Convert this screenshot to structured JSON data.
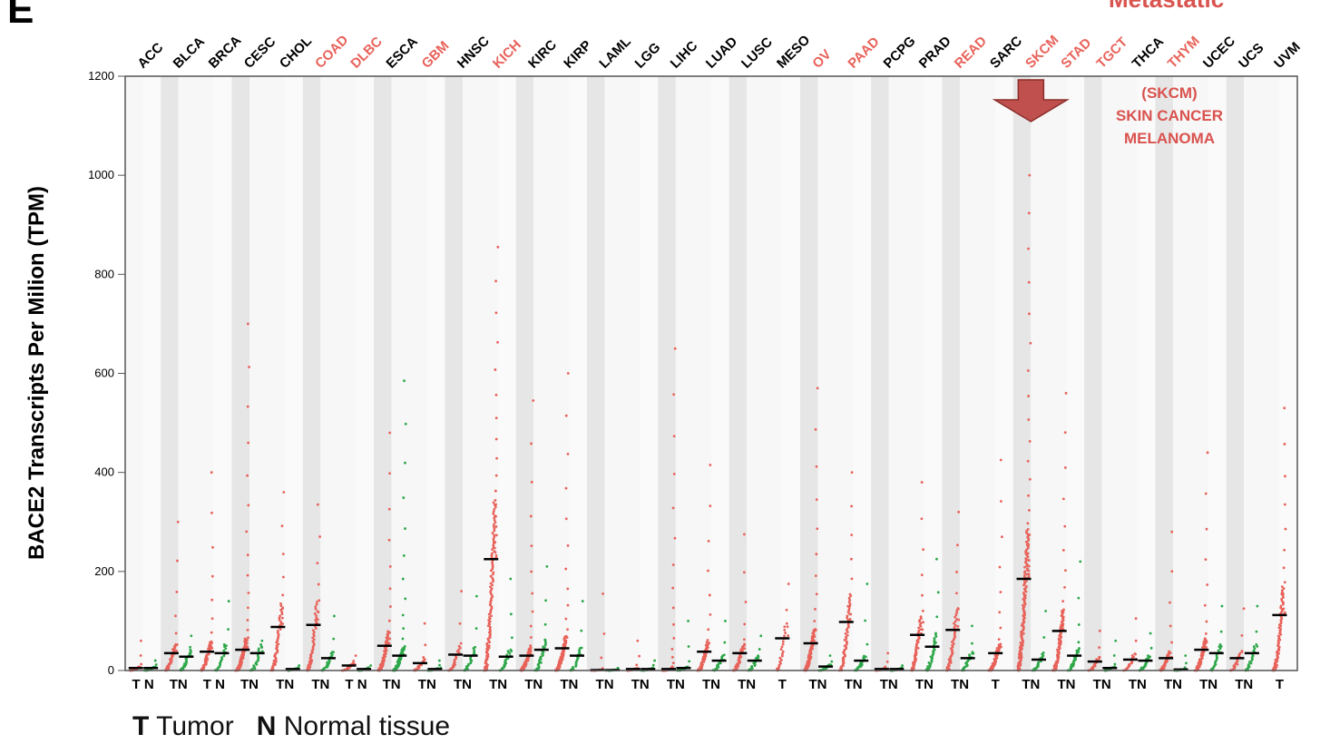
{
  "panel_letter": "E",
  "corner_text": "Metastatic",
  "legend": {
    "tumor_key": "T",
    "tumor_label": "Tumor",
    "normal_key": "N",
    "normal_label": "Normal tissue"
  },
  "annotation": [
    "(SKCM)",
    "SKIN CANCER",
    "MELANOMA"
  ],
  "colors": {
    "tumor": "#e8625a",
    "normal": "#2ea84a",
    "highlight_label": "#e8625a",
    "label": "#000000",
    "band_dark": "#e6e6e6",
    "band_light": "#f7f7f7",
    "arrow": "#c0504d",
    "annotation": "#d9534f"
  },
  "chart_data": {
    "type": "scatter",
    "title": "",
    "ylabel": "BACE2 Transcripts Per Milion (TPM)",
    "xlabel": "",
    "ylim": [
      0,
      1200
    ],
    "yticks": [
      0,
      200,
      400,
      600,
      800,
      1000,
      1200
    ],
    "grid": false,
    "legend_placement": "bottom-left",
    "groups": [
      {
        "name": "ACC",
        "highlight": false,
        "tumor_median": 5,
        "tumor_max": 60,
        "normal_median": 5,
        "normal_max": 20,
        "labels": "T N"
      },
      {
        "name": "BLCA",
        "highlight": false,
        "tumor_median": 35,
        "tumor_max": 300,
        "normal_median": 28,
        "normal_max": 70,
        "labels": "TN"
      },
      {
        "name": "BRCA",
        "highlight": false,
        "tumor_median": 38,
        "tumor_max": 400,
        "normal_median": 35,
        "normal_max": 140,
        "labels": "T N"
      },
      {
        "name": "CESC",
        "highlight": false,
        "tumor_median": 42,
        "tumor_max": 700,
        "normal_median": 35,
        "normal_max": 60,
        "labels": "TN"
      },
      {
        "name": "CHOL",
        "highlight": false,
        "tumor_median": 88,
        "tumor_max": 360,
        "normal_median": 3,
        "normal_max": 10,
        "labels": "TN"
      },
      {
        "name": "COAD",
        "highlight": true,
        "tumor_median": 92,
        "tumor_max": 335,
        "normal_median": 25,
        "normal_max": 110,
        "labels": "TN"
      },
      {
        "name": "DLBC",
        "highlight": true,
        "tumor_median": 10,
        "tumor_max": 30,
        "normal_median": 3,
        "normal_max": 10,
        "labels": "T N"
      },
      {
        "name": "ESCA",
        "highlight": false,
        "tumor_median": 50,
        "tumor_max": 480,
        "normal_median": 30,
        "normal_max": 585,
        "labels": "TN"
      },
      {
        "name": "GBM",
        "highlight": true,
        "tumor_median": 15,
        "tumor_max": 95,
        "normal_median": 3,
        "normal_max": 20,
        "labels": "TN"
      },
      {
        "name": "HNSC",
        "highlight": false,
        "tumor_median": 32,
        "tumor_max": 160,
        "normal_median": 30,
        "normal_max": 150,
        "labels": "TN"
      },
      {
        "name": "KICH",
        "highlight": true,
        "tumor_median": 225,
        "tumor_max": 855,
        "normal_median": 28,
        "normal_max": 185,
        "labels": "TN"
      },
      {
        "name": "KIRC",
        "highlight": false,
        "tumor_median": 30,
        "tumor_max": 545,
        "normal_median": 42,
        "normal_max": 210,
        "labels": "TN"
      },
      {
        "name": "KIRP",
        "highlight": false,
        "tumor_median": 45,
        "tumor_max": 600,
        "normal_median": 30,
        "normal_max": 140,
        "labels": "TN"
      },
      {
        "name": "LAML",
        "highlight": false,
        "tumor_median": 1,
        "tumor_max": 155,
        "normal_median": 1,
        "normal_max": 5,
        "labels": "TN"
      },
      {
        "name": "LGG",
        "highlight": false,
        "tumor_median": 3,
        "tumor_max": 60,
        "normal_median": 3,
        "normal_max": 20,
        "labels": "TN"
      },
      {
        "name": "LIHC",
        "highlight": false,
        "tumor_median": 3,
        "tumor_max": 650,
        "normal_median": 5,
        "normal_max": 100,
        "labels": "TN"
      },
      {
        "name": "LUAD",
        "highlight": false,
        "tumor_median": 38,
        "tumor_max": 415,
        "normal_median": 20,
        "normal_max": 100,
        "labels": "TN"
      },
      {
        "name": "LUSC",
        "highlight": false,
        "tumor_median": 35,
        "tumor_max": 275,
        "normal_median": 20,
        "normal_max": 70,
        "labels": "TN"
      },
      {
        "name": "MESO",
        "highlight": false,
        "tumor_median": 65,
        "tumor_max": 175,
        "normal_median": 0,
        "normal_max": 0,
        "labels": "T"
      },
      {
        "name": "OV",
        "highlight": true,
        "tumor_median": 55,
        "tumor_max": 570,
        "normal_median": 8,
        "normal_max": 30,
        "labels": "TN"
      },
      {
        "name": "PAAD",
        "highlight": true,
        "tumor_median": 98,
        "tumor_max": 400,
        "normal_median": 20,
        "normal_max": 175,
        "labels": "TN"
      },
      {
        "name": "PCPG",
        "highlight": false,
        "tumor_median": 3,
        "tumor_max": 35,
        "normal_median": 3,
        "normal_max": 10,
        "labels": "TN"
      },
      {
        "name": "PRAD",
        "highlight": false,
        "tumor_median": 72,
        "tumor_max": 380,
        "normal_median": 48,
        "normal_max": 225,
        "labels": "TN"
      },
      {
        "name": "READ",
        "highlight": true,
        "tumor_median": 82,
        "tumor_max": 320,
        "normal_median": 25,
        "normal_max": 90,
        "labels": "TN"
      },
      {
        "name": "SARC",
        "highlight": false,
        "tumor_median": 35,
        "tumor_max": 425,
        "normal_median": 0,
        "normal_max": 0,
        "labels": "T"
      },
      {
        "name": "SKCM",
        "highlight": true,
        "tumor_median": 185,
        "tumor_max": 1000,
        "normal_median": 22,
        "normal_max": 120,
        "labels": "TN"
      },
      {
        "name": "STAD",
        "highlight": true,
        "tumor_median": 80,
        "tumor_max": 560,
        "normal_median": 30,
        "normal_max": 220,
        "labels": "TN"
      },
      {
        "name": "TGCT",
        "highlight": true,
        "tumor_median": 18,
        "tumor_max": 80,
        "normal_median": 5,
        "normal_max": 60,
        "labels": "TN"
      },
      {
        "name": "THCA",
        "highlight": false,
        "tumor_median": 22,
        "tumor_max": 105,
        "normal_median": 20,
        "normal_max": 75,
        "labels": "TN"
      },
      {
        "name": "THYM",
        "highlight": true,
        "tumor_median": 25,
        "tumor_max": 280,
        "normal_median": 2,
        "normal_max": 30,
        "labels": "TN"
      },
      {
        "name": "UCEC",
        "highlight": false,
        "tumor_median": 42,
        "tumor_max": 440,
        "normal_median": 35,
        "normal_max": 130,
        "labels": "TN"
      },
      {
        "name": "UCS",
        "highlight": false,
        "tumor_median": 25,
        "tumor_max": 125,
        "normal_median": 35,
        "normal_max": 130,
        "labels": "TN"
      },
      {
        "name": "UVM",
        "highlight": false,
        "tumor_median": 112,
        "tumor_max": 530,
        "normal_median": 0,
        "normal_max": 0,
        "labels": "T"
      }
    ]
  }
}
